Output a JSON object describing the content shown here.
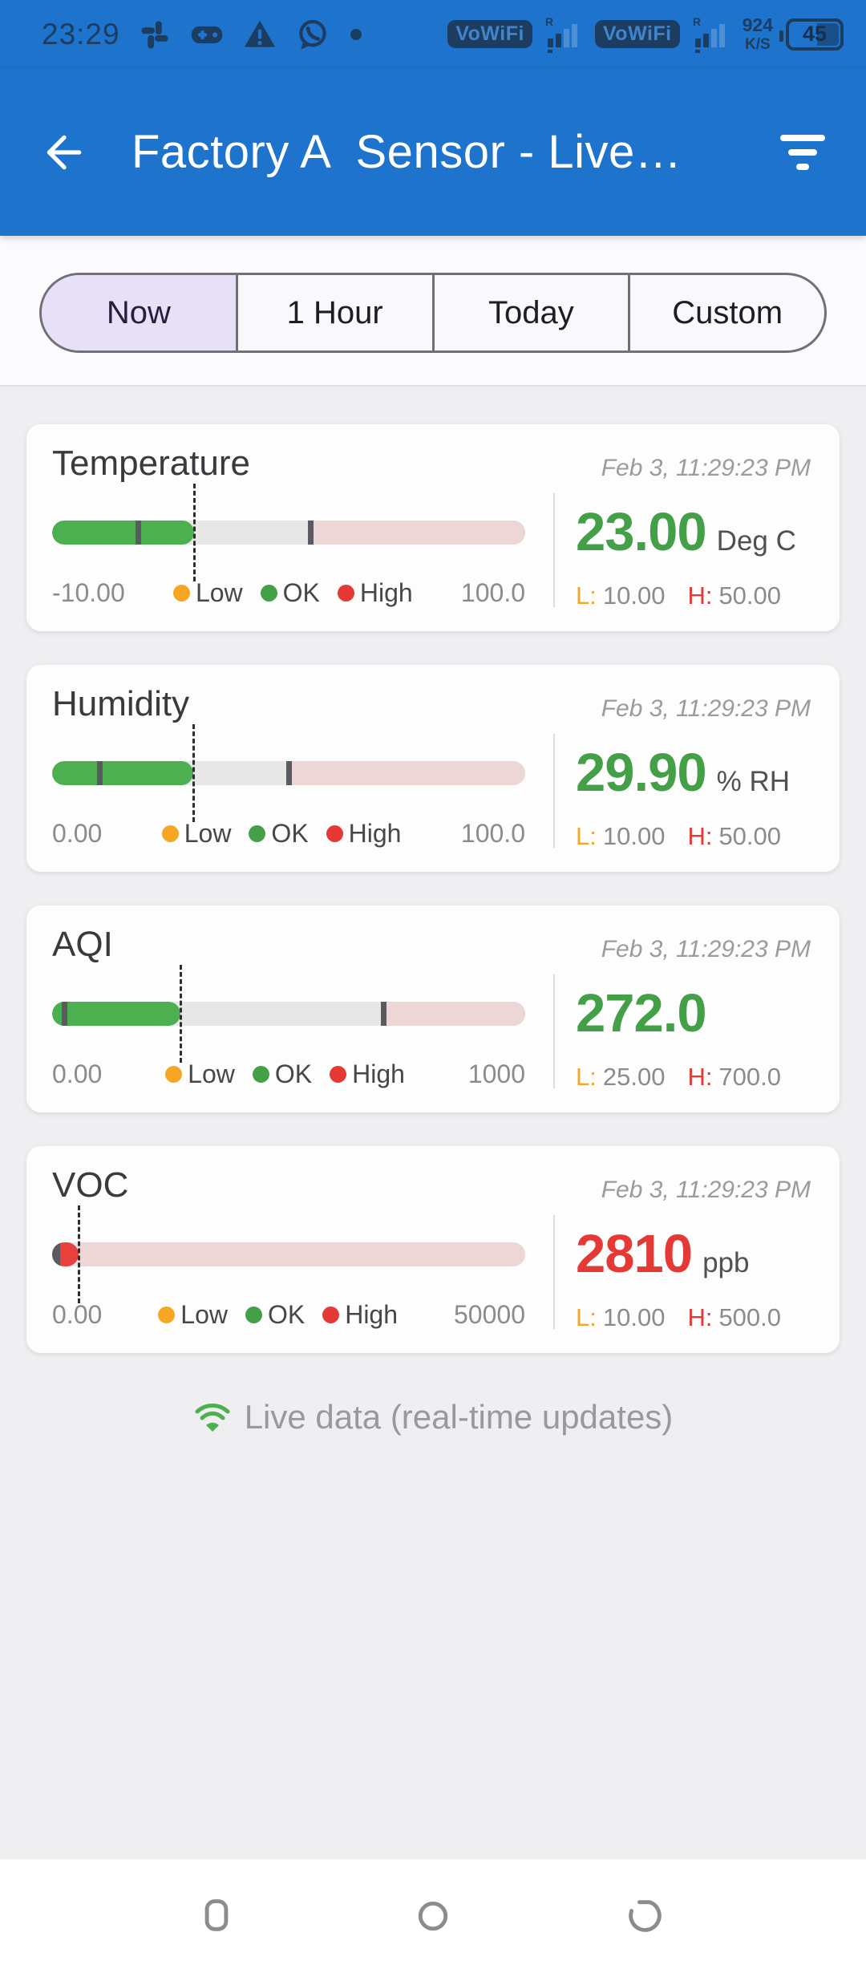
{
  "colors": {
    "ok_green": "#43A047",
    "alert_red": "#E53935",
    "low_orange": "#F6A623",
    "bar_green": "#4CAF50",
    "bar_red": "#E8413D",
    "high_zone_pink": "#ECD6D6",
    "accent_blue": "#1E73CD",
    "selected_tab": "#E7E0F7"
  },
  "status_bar": {
    "time": "23:29",
    "sim1_badge": "VoWiFi",
    "sim2_badge": "VoWiFi",
    "net_speed_value": "924",
    "net_speed_unit": "K/S",
    "battery_level": "45"
  },
  "app_bar": {
    "title": "Factory A  Sensor - Live…"
  },
  "tabs": {
    "items": [
      {
        "label": "Now",
        "selected": true
      },
      {
        "label": "1 Hour",
        "selected": false
      },
      {
        "label": "Today",
        "selected": false
      },
      {
        "label": "Custom",
        "selected": false
      }
    ]
  },
  "legend": {
    "low": "Low",
    "ok": "OK",
    "high": "High"
  },
  "labels": {
    "low_prefix": "L:",
    "high_prefix": "H:"
  },
  "cards": [
    {
      "name": "Temperature",
      "timestamp": "Feb 3, 11:29:23 PM",
      "value": 23.0,
      "value_display": "23.00",
      "unit": "Deg C",
      "status": "ok",
      "min": -10,
      "min_display": "-10.00",
      "max": 100,
      "max_display": "100.0",
      "low": 10,
      "low_display": "10.00",
      "high": 50,
      "high_display": "50.00"
    },
    {
      "name": "Humidity",
      "timestamp": "Feb 3, 11:29:23 PM",
      "value": 29.9,
      "value_display": "29.90",
      "unit": "% RH",
      "status": "ok",
      "min": 0,
      "min_display": "0.00",
      "max": 100,
      "max_display": "100.0",
      "low": 10,
      "low_display": "10.00",
      "high": 50,
      "high_display": "50.00"
    },
    {
      "name": "AQI",
      "timestamp": "Feb 3, 11:29:23 PM",
      "value": 272.0,
      "value_display": "272.0",
      "unit": "",
      "status": "ok",
      "min": 0,
      "min_display": "0.00",
      "max": 1000,
      "max_display": "1000",
      "low": 25,
      "low_display": "25.00",
      "high": 700,
      "high_display": "700.0"
    },
    {
      "name": "VOC",
      "timestamp": "Feb 3, 11:29:23 PM",
      "value": 2810,
      "value_display": "2810",
      "unit": "ppb",
      "status": "high",
      "min": 0,
      "min_display": "0.00",
      "max": 50000,
      "max_display": "50000",
      "low": 10,
      "low_display": "10.00",
      "high": 500,
      "high_display": "500.0"
    }
  ],
  "footer": {
    "message": "Live data (real-time updates)"
  }
}
